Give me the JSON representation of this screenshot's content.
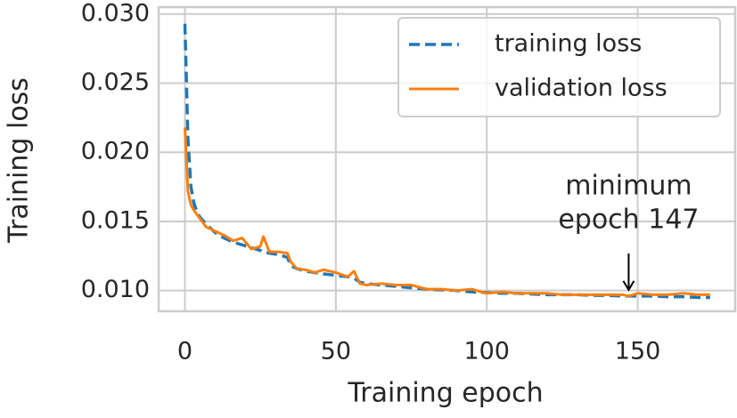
{
  "chart_data": {
    "type": "line",
    "xlabel": "Training epoch",
    "ylabel": "Training loss",
    "x": [
      0,
      1,
      2,
      3,
      4,
      5,
      7,
      10,
      13,
      16,
      19,
      22,
      25,
      26,
      28,
      31,
      34,
      35,
      37,
      40,
      43,
      46,
      50,
      54,
      56,
      58,
      60,
      65,
      70,
      75,
      80,
      85,
      90,
      95,
      100,
      105,
      110,
      115,
      120,
      125,
      130,
      135,
      140,
      145,
      147,
      150,
      155,
      160,
      165,
      170,
      174
    ],
    "series": [
      {
        "name": "training loss",
        "color": "#1f77b4",
        "dashed": true,
        "values": [
          0.0293,
          0.021,
          0.0175,
          0.0163,
          0.0157,
          0.0153,
          0.0148,
          0.0142,
          0.0138,
          0.0135,
          0.0133,
          0.0131,
          0.0129,
          0.0128,
          0.0127,
          0.0126,
          0.0124,
          0.0118,
          0.0116,
          0.0114,
          0.0113,
          0.0112,
          0.0111,
          0.011,
          0.0109,
          0.0106,
          0.0105,
          0.0104,
          0.0103,
          0.0102,
          0.0101,
          0.01005,
          0.01,
          0.0099,
          0.00985,
          0.0098,
          0.0098,
          0.00975,
          0.0097,
          0.0097,
          0.0097,
          0.00965,
          0.00965,
          0.0096,
          0.0096,
          0.0096,
          0.0096,
          0.00955,
          0.00955,
          0.0095,
          0.0095
        ]
      },
      {
        "name": "validation loss",
        "color": "#ff7f0e",
        "dashed": false,
        "values": [
          0.0218,
          0.0172,
          0.0162,
          0.0158,
          0.0155,
          0.0152,
          0.0146,
          0.0143,
          0.014,
          0.0136,
          0.0138,
          0.013,
          0.0132,
          0.0139,
          0.0128,
          0.0128,
          0.0127,
          0.0121,
          0.0116,
          0.0115,
          0.0113,
          0.0115,
          0.0113,
          0.011,
          0.0114,
          0.0105,
          0.0104,
          0.0105,
          0.0104,
          0.0104,
          0.0101,
          0.0101,
          0.01,
          0.0101,
          0.0098,
          0.0099,
          0.0098,
          0.0098,
          0.0098,
          0.0097,
          0.0097,
          0.0097,
          0.0097,
          0.0097,
          0.0096,
          0.0098,
          0.0097,
          0.0097,
          0.0098,
          0.0097,
          0.0097
        ]
      }
    ],
    "xlim": [
      -8.7,
      182.3
    ],
    "xticks": [
      0,
      50,
      100,
      150
    ],
    "ylim": [
      0.0085,
      0.0305
    ],
    "yticks": [
      {
        "value": 0.01,
        "label": "0.010"
      },
      {
        "value": 0.015,
        "label": "0.015"
      },
      {
        "value": 0.02,
        "label": "0.020"
      },
      {
        "value": 0.025,
        "label": "0.025"
      },
      {
        "value": 0.03,
        "label": "0.030"
      }
    ],
    "grid": true,
    "legend": "upper right",
    "annotation": {
      "text": [
        "minimum",
        "epoch 147"
      ],
      "x": 147,
      "y": 0.0096
    }
  }
}
